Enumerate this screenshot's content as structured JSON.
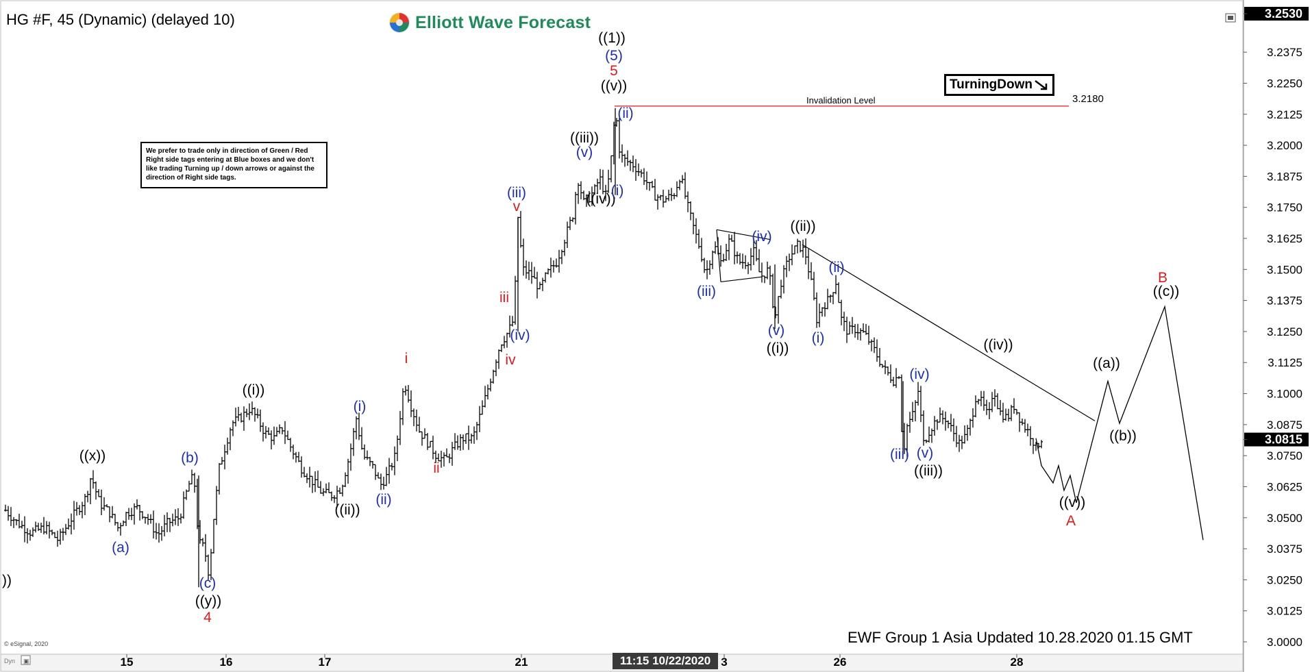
{
  "header": {
    "title": "HG #F, 45 (Dynamic) (delayed 10)",
    "logo_text": "Elliott Wave Forecast"
  },
  "note": "We prefer to trade only in direction of Green / Red Right side tags entering at Blue boxes and we don't like trading Turning up / down arrows or against the direction of Right side tags.",
  "turning_tag": "TurningDown",
  "footer": "EWF Group 1 Asia Updated 10.28.2020 01.15 GMT",
  "esignal": "© eSignal, 2020",
  "time_tag": "11:15 10/22/2020",
  "colors": {
    "blue": "#1a2dbd",
    "red": "#e01a1a",
    "black": "#000000",
    "accent_green": "#1f8a5b"
  },
  "chart_data": {
    "type": "bar",
    "instrument": "HG #F",
    "ylim": [
      3.0,
      3.253
    ],
    "y_ticks": [
      "3.2530",
      "3.2375",
      "3.2250",
      "3.2125",
      "3.2000",
      "3.1875",
      "3.1750",
      "3.1625",
      "3.1500",
      "3.1375",
      "3.1250",
      "3.1125",
      "3.1000",
      "3.0875",
      "3.0815",
      "3.0750",
      "3.0625",
      "3.0500",
      "3.0375",
      "3.0250",
      "3.0125",
      "3.0000"
    ],
    "x_ticks": [
      {
        "label": "15",
        "x": 185
      },
      {
        "label": "16",
        "x": 330
      },
      {
        "label": "17",
        "x": 474
      },
      {
        "label": "21",
        "x": 761
      },
      {
        "label": "3",
        "x": 1057
      },
      {
        "label": "26",
        "x": 1226
      },
      {
        "label": "28",
        "x": 1484
      }
    ],
    "current_price": "3.0815",
    "top_price": "3.2530",
    "invalidation": {
      "label": "Invalidation Level",
      "value": "3.2180"
    },
    "price_path": [
      [
        8,
        3.053
      ],
      [
        25,
        3.048
      ],
      [
        45,
        3.044
      ],
      [
        65,
        3.046
      ],
      [
        85,
        3.041
      ],
      [
        105,
        3.05
      ],
      [
        125,
        3.058
      ],
      [
        133,
        3.067
      ],
      [
        145,
        3.056
      ],
      [
        160,
        3.052
      ],
      [
        172,
        3.046
      ],
      [
        185,
        3.052
      ],
      [
        200,
        3.054
      ],
      [
        215,
        3.05
      ],
      [
        230,
        3.043
      ],
      [
        245,
        3.048
      ],
      [
        262,
        3.05
      ],
      [
        275,
        3.063
      ],
      [
        283,
        3.067
      ],
      [
        290,
        3.04
      ],
      [
        298,
        3.038
      ],
      [
        305,
        3.027
      ],
      [
        312,
        3.05
      ],
      [
        320,
        3.07
      ],
      [
        328,
        3.078
      ],
      [
        338,
        3.088
      ],
      [
        350,
        3.09
      ],
      [
        365,
        3.094
      ],
      [
        375,
        3.09
      ],
      [
        387,
        3.084
      ],
      [
        400,
        3.082
      ],
      [
        412,
        3.086
      ],
      [
        425,
        3.078
      ],
      [
        440,
        3.07
      ],
      [
        455,
        3.065
      ],
      [
        470,
        3.06
      ],
      [
        485,
        3.059
      ],
      [
        498,
        3.062
      ],
      [
        510,
        3.075
      ],
      [
        520,
        3.09
      ],
      [
        530,
        3.075
      ],
      [
        545,
        3.07
      ],
      [
        555,
        3.063
      ],
      [
        565,
        3.067
      ],
      [
        577,
        3.075
      ],
      [
        590,
        3.105
      ],
      [
        600,
        3.095
      ],
      [
        612,
        3.085
      ],
      [
        625,
        3.08
      ],
      [
        637,
        3.075
      ],
      [
        650,
        3.073
      ],
      [
        662,
        3.078
      ],
      [
        675,
        3.082
      ],
      [
        690,
        3.082
      ],
      [
        705,
        3.095
      ],
      [
        718,
        3.108
      ],
      [
        730,
        3.12
      ],
      [
        742,
        3.125
      ],
      [
        750,
        3.13
      ],
      [
        756,
        3.171
      ],
      [
        763,
        3.15
      ],
      [
        775,
        3.148
      ],
      [
        788,
        3.142
      ],
      [
        798,
        3.148
      ],
      [
        812,
        3.153
      ],
      [
        825,
        3.163
      ],
      [
        836,
        3.172
      ],
      [
        843,
        3.187
      ],
      [
        852,
        3.177
      ],
      [
        860,
        3.179
      ],
      [
        868,
        3.182
      ],
      [
        875,
        3.187
      ],
      [
        885,
        3.179
      ],
      [
        893,
        3.197
      ],
      [
        898,
        3.215
      ],
      [
        905,
        3.196
      ],
      [
        912,
        3.194
      ],
      [
        925,
        3.192
      ],
      [
        940,
        3.187
      ],
      [
        955,
        3.18
      ],
      [
        968,
        3.178
      ],
      [
        983,
        3.18
      ],
      [
        993,
        3.188
      ],
      [
        1003,
        3.176
      ],
      [
        1012,
        3.167
      ],
      [
        1022,
        3.158
      ],
      [
        1030,
        3.148
      ],
      [
        1042,
        3.16
      ],
      [
        1052,
        3.153
      ],
      [
        1065,
        3.162
      ],
      [
        1078,
        3.153
      ],
      [
        1090,
        3.153
      ],
      [
        1100,
        3.157
      ],
      [
        1110,
        3.147
      ],
      [
        1122,
        3.15
      ],
      [
        1131,
        3.13
      ],
      [
        1140,
        3.145
      ],
      [
        1152,
        3.155
      ],
      [
        1165,
        3.16
      ],
      [
        1175,
        3.157
      ],
      [
        1185,
        3.143
      ],
      [
        1192,
        3.13
      ],
      [
        1200,
        3.135
      ],
      [
        1210,
        3.138
      ],
      [
        1220,
        3.145
      ],
      [
        1228,
        3.13
      ],
      [
        1237,
        3.125
      ],
      [
        1248,
        3.126
      ],
      [
        1262,
        3.124
      ],
      [
        1275,
        3.118
      ],
      [
        1290,
        3.11
      ],
      [
        1305,
        3.105
      ],
      [
        1312,
        3.108
      ],
      [
        1318,
        3.075
      ],
      [
        1324,
        3.087
      ],
      [
        1333,
        3.092
      ],
      [
        1340,
        3.101
      ],
      [
        1348,
        3.08
      ],
      [
        1356,
        3.085
      ],
      [
        1368,
        3.09
      ],
      [
        1380,
        3.09
      ],
      [
        1390,
        3.085
      ],
      [
        1400,
        3.08
      ],
      [
        1410,
        3.083
      ],
      [
        1418,
        3.09
      ],
      [
        1425,
        3.1
      ],
      [
        1435,
        3.095
      ],
      [
        1443,
        3.09
      ],
      [
        1450,
        3.103
      ],
      [
        1458,
        3.093
      ],
      [
        1470,
        3.09
      ],
      [
        1480,
        3.095
      ],
      [
        1492,
        3.088
      ],
      [
        1505,
        3.083
      ],
      [
        1512,
        3.078
      ],
      [
        1520,
        3.082
      ]
    ]
  },
  "projection": {
    "points": [
      [
        1512,
        3.082
      ],
      [
        1520,
        3.071
      ],
      [
        1537,
        3.064
      ],
      [
        1545,
        3.071
      ],
      [
        1553,
        3.061
      ],
      [
        1562,
        3.067
      ],
      [
        1571,
        3.056
      ],
      [
        1617,
        3.105
      ],
      [
        1634,
        3.088
      ],
      [
        1700,
        3.135
      ],
      [
        1756,
        3.041
      ]
    ]
  },
  "trendlines": [
    {
      "from": [
        1171,
        3.16
      ],
      "to": [
        1598,
        3.089
      ]
    }
  ],
  "triangle": [
    [
      1046,
      3.166
    ],
    [
      1125,
      3.162
    ],
    [
      1052,
      3.145
    ],
    [
      1112,
      3.147
    ]
  ],
  "labels": [
    {
      "text": "((1))",
      "x": 893,
      "y": 62,
      "color": "black"
    },
    {
      "text": "(5)",
      "x": 896,
      "y": 88,
      "color": "blue"
    },
    {
      "text": "5",
      "x": 896,
      "y": 110,
      "color": "red"
    },
    {
      "text": "((v))",
      "x": 896,
      "y": 132,
      "color": "black"
    },
    {
      "text": "(ii)",
      "x": 913,
      "y": 172,
      "color": "blue"
    },
    {
      "text": "((iii))",
      "x": 853,
      "y": 208,
      "color": "black"
    },
    {
      "text": "(v)",
      "x": 853,
      "y": 229,
      "color": "blue"
    },
    {
      "text": "((iv))",
      "x": 877,
      "y": 297,
      "color": "black"
    },
    {
      "text": "(i)",
      "x": 901,
      "y": 285,
      "color": "blue"
    },
    {
      "text": "(iii)",
      "x": 754,
      "y": 288,
      "color": "blue"
    },
    {
      "text": "v",
      "x": 754,
      "y": 308,
      "color": "red"
    },
    {
      "text": "iii",
      "x": 736,
      "y": 441,
      "color": "red"
    },
    {
      "text": "(iv)",
      "x": 759,
      "y": 496,
      "color": "blue"
    },
    {
      "text": "iv",
      "x": 745,
      "y": 532,
      "color": "red"
    },
    {
      "text": "i",
      "x": 593,
      "y": 530,
      "color": "red"
    },
    {
      "text": "ii",
      "x": 637,
      "y": 690,
      "color": "red"
    },
    {
      "text": "(i)",
      "x": 525,
      "y": 600,
      "color": "blue"
    },
    {
      "text": "(ii)",
      "x": 560,
      "y": 736,
      "color": "blue"
    },
    {
      "text": "((i))",
      "x": 370,
      "y": 576,
      "color": "black"
    },
    {
      "text": "((ii))",
      "x": 507,
      "y": 751,
      "color": "black"
    },
    {
      "text": "((x))",
      "x": 135,
      "y": 672,
      "color": "black"
    },
    {
      "text": "(a)",
      "x": 176,
      "y": 806,
      "color": "blue"
    },
    {
      "text": "(b)",
      "x": 277,
      "y": 675,
      "color": "blue"
    },
    {
      "text": "(c)",
      "x": 303,
      "y": 858,
      "color": "blue"
    },
    {
      "text": "((y))",
      "x": 304,
      "y": 884,
      "color": "black"
    },
    {
      "text": "4",
      "x": 303,
      "y": 908,
      "color": "red"
    },
    {
      "text": "))",
      "x": 10,
      "y": 854,
      "color": "black"
    },
    {
      "text": "((ii))",
      "x": 1172,
      "y": 337,
      "color": "black"
    },
    {
      "text": "(iv)",
      "x": 1112,
      "y": 352,
      "color": "blue"
    },
    {
      "text": "(iii)",
      "x": 1031,
      "y": 432,
      "color": "blue"
    },
    {
      "text": "(v)",
      "x": 1133,
      "y": 489,
      "color": "blue"
    },
    {
      "text": "((i))",
      "x": 1135,
      "y": 515,
      "color": "black"
    },
    {
      "text": "(ii)",
      "x": 1221,
      "y": 397,
      "color": "blue"
    },
    {
      "text": "(i)",
      "x": 1194,
      "y": 500,
      "color": "blue"
    },
    {
      "text": "(iv)",
      "x": 1342,
      "y": 553,
      "color": "blue"
    },
    {
      "text": "(iii)",
      "x": 1313,
      "y": 670,
      "color": "blue"
    },
    {
      "text": "(v)",
      "x": 1350,
      "y": 668,
      "color": "blue"
    },
    {
      "text": "((iii))",
      "x": 1355,
      "y": 694,
      "color": "black"
    },
    {
      "text": "((iv))",
      "x": 1457,
      "y": 510,
      "color": "black"
    },
    {
      "text": "((v))",
      "x": 1565,
      "y": 740,
      "color": "black"
    },
    {
      "text": "A",
      "x": 1563,
      "y": 767,
      "color": "red"
    },
    {
      "text": "((a))",
      "x": 1615,
      "y": 537,
      "color": "black"
    },
    {
      "text": "((b))",
      "x": 1639,
      "y": 643,
      "color": "black"
    },
    {
      "text": "B",
      "x": 1697,
      "y": 412,
      "color": "red"
    },
    {
      "text": "((c))",
      "x": 1702,
      "y": 432,
      "color": "black"
    }
  ]
}
